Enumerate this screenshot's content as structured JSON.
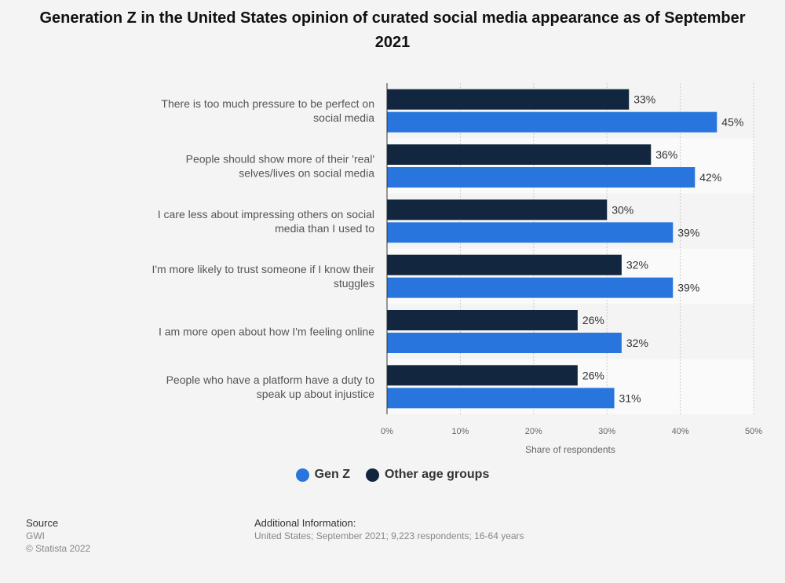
{
  "colors": {
    "gen_z": "#2876dd",
    "other": "#12263f",
    "band_alt": "#fafafa",
    "grid": "#cccccc"
  },
  "chart_data": {
    "type": "bar",
    "orientation": "horizontal",
    "title": "Generation Z in the United States opinion of curated social media appearance as of September 2021",
    "xlabel": "Share of respondents",
    "ylabel": "",
    "xlim": [
      0,
      50
    ],
    "ticks": [
      0,
      10,
      20,
      30,
      40,
      50
    ],
    "tick_labels": [
      "0%",
      "10%",
      "20%",
      "30%",
      "40%",
      "50%"
    ],
    "grid": true,
    "legend_position": "bottom",
    "categories": [
      [
        "There is too much pressure to be perfect on",
        "social media"
      ],
      [
        "People should show more of their 'real'",
        "selves/lives on social media"
      ],
      [
        "I care less about impressing others on social",
        "media than I used to"
      ],
      [
        "I'm more likely to trust someone if I know their",
        "stuggles"
      ],
      [
        "I am more open about how I'm feeling online"
      ],
      [
        "People who have a platform have a duty to",
        "speak up about injustice"
      ]
    ],
    "series": [
      {
        "name": "Other age groups",
        "values": [
          33,
          36,
          30,
          32,
          26,
          26
        ]
      },
      {
        "name": "Gen Z",
        "values": [
          45,
          42,
          39,
          39,
          32,
          31
        ]
      }
    ]
  },
  "legend": {
    "gen_z": "Gen Z",
    "other": "Other age groups"
  },
  "footer": {
    "source_heading": "Source",
    "source_lines": [
      "GWI",
      "© Statista 2022"
    ],
    "info_heading": "Additional Information:",
    "info_text": "United States; September 2021; 9,223 respondents; 16-64 years"
  }
}
